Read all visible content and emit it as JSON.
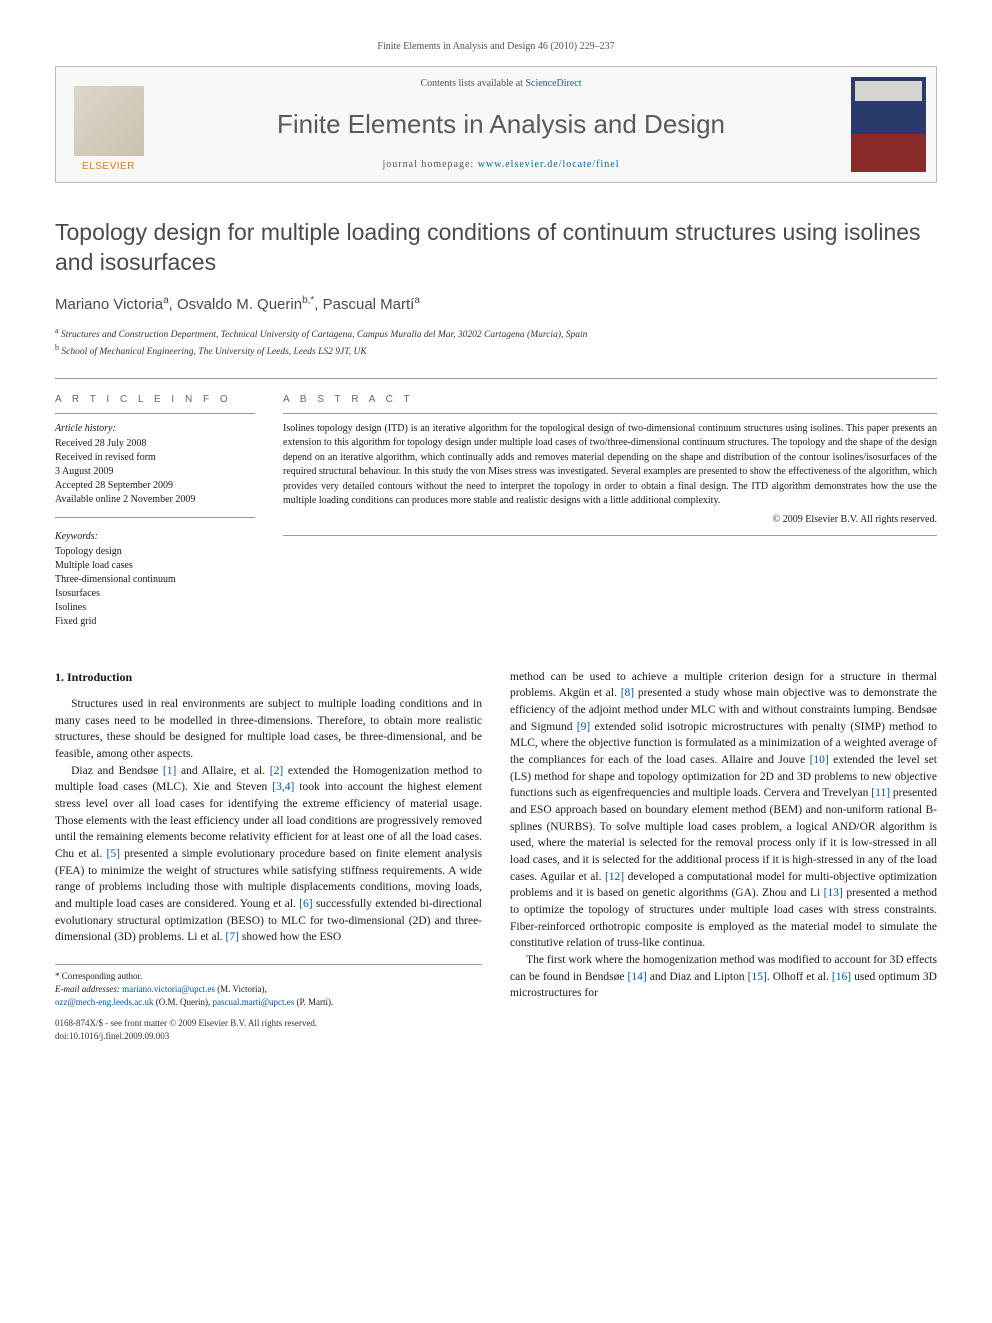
{
  "header": {
    "running_head": "Finite Elements in Analysis and Design 46 (2010) 229–237"
  },
  "banner": {
    "contents_prefix": "Contents lists available at ",
    "contents_link": "ScienceDirect",
    "journal_title": "Finite Elements in Analysis and Design",
    "homepage_prefix": "journal homepage: ",
    "homepage_url": "www.elsevier.de/locate/finel",
    "publisher_label": "ELSEVIER"
  },
  "article": {
    "title": "Topology design for multiple loading conditions of continuum structures using isolines and isosurfaces",
    "authors_html": "Mariano Victoria<sup>a</sup>, Osvaldo M. Querin<sup>b,*</sup>, Pascual Martí<sup>a</sup>",
    "affiliations": {
      "a": "Structures and Construction Department, Technical University of Cartagena, Campus Muralla del Mar, 30202 Cartagena (Murcia), Spain",
      "b": "School of Mechanical Engineering, The University of Leeds, Leeds LS2 9JT, UK"
    }
  },
  "article_info": {
    "heading": "A R T I C L E   I N F O",
    "history_label": "Article history:",
    "history": [
      "Received 28 July 2008",
      "Received in revised form",
      "3 August 2009",
      "Accepted 28 September 2009",
      "Available online 2 November 2009"
    ],
    "keywords_label": "Keywords:",
    "keywords": [
      "Topology design",
      "Multiple load cases",
      "Three-dimensional continuum",
      "Isosurfaces",
      "Isolines",
      "Fixed grid"
    ]
  },
  "abstract": {
    "heading": "A B S T R A C T",
    "text": "Isolines topology design (ITD) is an iterative algorithm for the topological design of two-dimensional continuum structures using isolines. This paper presents an extension to this algorithm for topology design under multiple load cases of two/three-dimensional continuum structures. The topology and the shape of the design depend on an iterative algorithm, which continually adds and removes material depending on the shape and distribution of the contour isolines/isosurfaces of the required structural behaviour. In this study the von Mises stress was investigated. Several examples are presented to show the effectiveness of the algorithm, which provides very detailed contours without the need to interpret the topology in order to obtain a final design. The ITD algorithm demonstrates how the use the multiple loading conditions can produces more stable and realistic designs with a little additional complexity.",
    "copyright": "© 2009 Elsevier B.V. All rights reserved."
  },
  "body": {
    "section_heading": "1.  Introduction",
    "para1": "Structures used in real environments are subject to multiple loading conditions and in many cases need to be modelled in three-dimensions. Therefore, to obtain more realistic structures, these should be designed for multiple load cases, be three-dimensional, and be feasible, among other aspects.",
    "para2_a": "Diaz and Bendsøe ",
    "para2_b": " and Allaire, et al. ",
    "para2_c": " extended the Homogenization method to multiple load cases (MLC). Xie and Steven ",
    "para2_d": " took into account the highest element stress level over all load cases for identifying the extreme efficiency of material usage. Those elements with the least efficiency under all load conditions are progressively removed until the remaining elements become relativity efficient for at least one of all the load cases. Chu et al. ",
    "para2_e": " presented a simple evolutionary procedure based on finite element analysis (FEA) to minimize the weight of structures while satisfying stiffness requirements. A wide range of problems including those with multiple displacements conditions, moving loads, and multiple load cases are considered. Young et al. ",
    "para2_f": " successfully extended bi-directional evolutionary structural optimization (BESO) to MLC for two-dimensional (2D) and three-dimensional (3D) problems. Li et al. ",
    "para2_g": " showed how the ESO ",
    "para3_a": "method can be used to achieve a multiple criterion design for a structure in thermal problems. Akgün et al. ",
    "para3_b": " presented a study whose main objective was to demonstrate the efficiency of the adjoint method under MLC with and without constraints lumping. Bendsøe and Sigmund ",
    "para3_c": " extended solid isotropic microstructures with penalty (SIMP) method to MLC, where the objective function is formulated as a minimization of a weighted average of the compliances for each of the load cases. Allaire and Jouve ",
    "para3_d": " extended the level set (LS) method for shape and topology optimization for 2D and 3D problems to new objective functions such as eigenfrequencies and multiple loads. Cervera and Trevelyan ",
    "para3_e": " presented and ESO approach based on boundary element method (BEM) and non-uniform rational B-splines (NURBS). To solve multiple load cases problem, a logical AND/OR algorithm is used, where the material is selected for the removal process only if it is low-stressed in all load cases, and it is selected for the additional process if it is high-stressed in any of the load cases. Aguilar et al. ",
    "para3_f": " developed a computational model for multi-objective optimization problems and it is based on genetic algorithms (GA). Zhou and Li ",
    "para3_g": " presented a method to optimize the topology of structures under multiple load cases with stress constraints. Fiber-reinforced orthotropic composite is employed as the material model to simulate the constitutive relation of truss-like continua.",
    "para4_a": "The first work where the homogenization method was modified to account for 3D effects can be found in Bendsøe ",
    "para4_b": " and Diaz and Lipton ",
    "para4_c": ". Olhoff et al. ",
    "para4_d": " used optimum 3D microstructures for ",
    "refs": {
      "r1": "[1]",
      "r2": "[2]",
      "r34": "[3,4]",
      "r5": "[5]",
      "r6": "[6]",
      "r7": "[7]",
      "r8": "[8]",
      "r9": "[9]",
      "r10": "[10]",
      "r11": "[11]",
      "r12": "[12]",
      "r13": "[13]",
      "r14": "[14]",
      "r15": "[15]",
      "r16": "[16]"
    }
  },
  "footnotes": {
    "corresponding": "* Corresponding author.",
    "email_label": "E-mail addresses: ",
    "email1": "mariano.victoria@upct.es",
    "email1_who": " (M. Victoria),",
    "email2": "ozz@mech-eng.leeds.ac.uk",
    "email2_who": " (O.M. Querin), ",
    "email3": "pascual.marti@upct.es",
    "email3_who": " (P. Martí)."
  },
  "footer": {
    "line1": "0168-874X/$ - see front matter © 2009 Elsevier B.V. All rights reserved.",
    "line2": "doi:10.1016/j.finel.2009.09.003"
  },
  "colors": {
    "link": "#0055aa",
    "publisher_orange": "#e67817",
    "heading_gray": "#5a5a5a",
    "rule_gray": "#999999"
  }
}
